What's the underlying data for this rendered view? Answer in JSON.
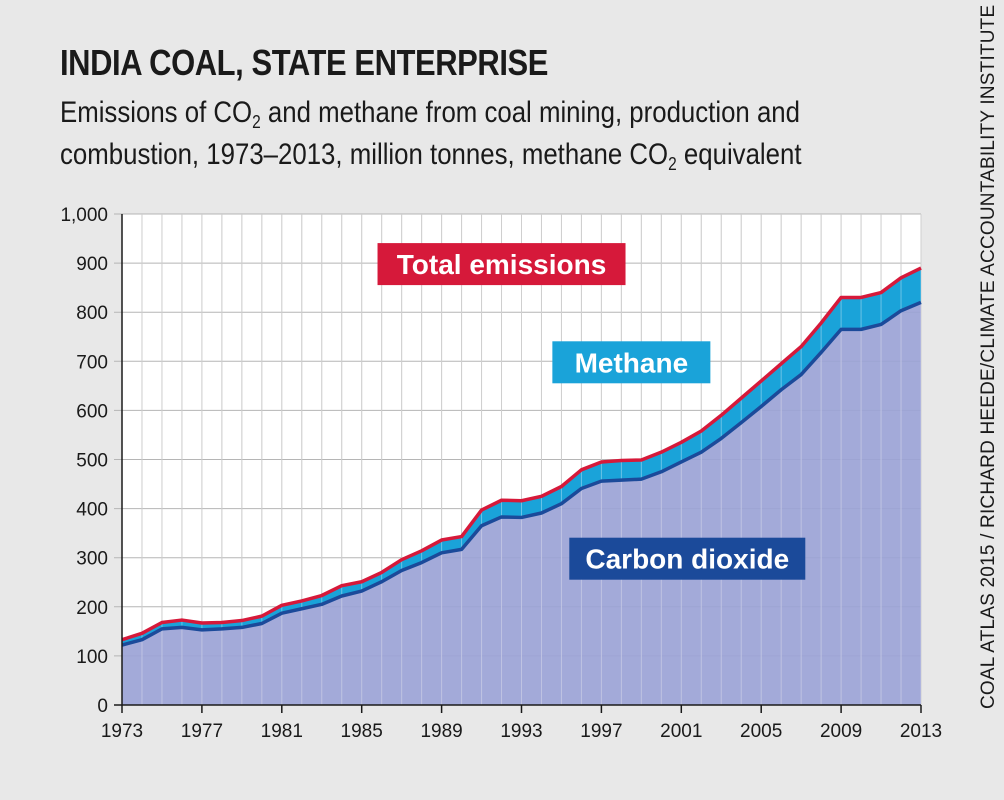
{
  "title": "INDIA COAL, STATE ENTERPRISE",
  "subtitle": {
    "line1_a": "Emissions of CO",
    "line1_sub": "2",
    "line1_b": " and methane from coal mining, production and",
    "line2_a": "combustion, 1973–2013, million tonnes, methane CO",
    "line2_sub": "2",
    "line2_b": " equivalent"
  },
  "source": "COAL ATLAS 2015 / RICHARD HEEDE/CLIMATE ACCOUNTABILITY INSTITUTE",
  "colors": {
    "total": "#d6193a",
    "methane_fill": "#1aa3d9",
    "co2_line": "#1b4a9a",
    "co2_fill": "#9ba3d6",
    "background": "#e8e8e8"
  },
  "chart_data": {
    "type": "area",
    "ylim": [
      0,
      1000
    ],
    "xlim": [
      1973,
      2013
    ],
    "yticks": [
      0,
      100,
      200,
      300,
      400,
      500,
      600,
      700,
      800,
      900,
      1000
    ],
    "ytick_labels": [
      "0",
      "100",
      "200",
      "300",
      "400",
      "500",
      "600",
      "700",
      "800",
      "900",
      "1,000"
    ],
    "xticks": [
      1973,
      1977,
      1981,
      1985,
      1989,
      1993,
      1997,
      2001,
      2005,
      2009,
      2013
    ],
    "grid": true,
    "x": [
      1973,
      1974,
      1975,
      1976,
      1977,
      1978,
      1979,
      1980,
      1981,
      1982,
      1983,
      1984,
      1985,
      1986,
      1987,
      1988,
      1989,
      1990,
      1991,
      1992,
      1993,
      1994,
      1995,
      1996,
      1997,
      1998,
      1999,
      2000,
      2001,
      2002,
      2003,
      2004,
      2005,
      2006,
      2007,
      2008,
      2009,
      2010,
      2011,
      2012,
      2013
    ],
    "series": [
      {
        "name": "Carbon dioxide",
        "values": [
          122,
          133,
          155,
          158,
          153,
          155,
          158,
          166,
          187,
          196,
          205,
          222,
          232,
          251,
          274,
          290,
          310,
          317,
          365,
          383,
          382,
          391,
          410,
          441,
          456,
          458,
          460,
          475,
          495,
          515,
          543,
          575,
          608,
          642,
          673,
          718,
          765,
          765,
          775,
          803,
          820
        ]
      },
      {
        "name": "Total emissions",
        "values": [
          133,
          146,
          168,
          173,
          167,
          168,
          172,
          181,
          203,
          212,
          223,
          243,
          251,
          270,
          296,
          314,
          336,
          343,
          397,
          417,
          416,
          425,
          445,
          479,
          495,
          498,
          499,
          515,
          535,
          558,
          590,
          625,
          660,
          695,
          730,
          778,
          830,
          830,
          840,
          870,
          890
        ]
      }
    ],
    "area_labels": {
      "total": "Total emissions",
      "methane": "Methane",
      "co2": "Carbon dioxide"
    }
  }
}
